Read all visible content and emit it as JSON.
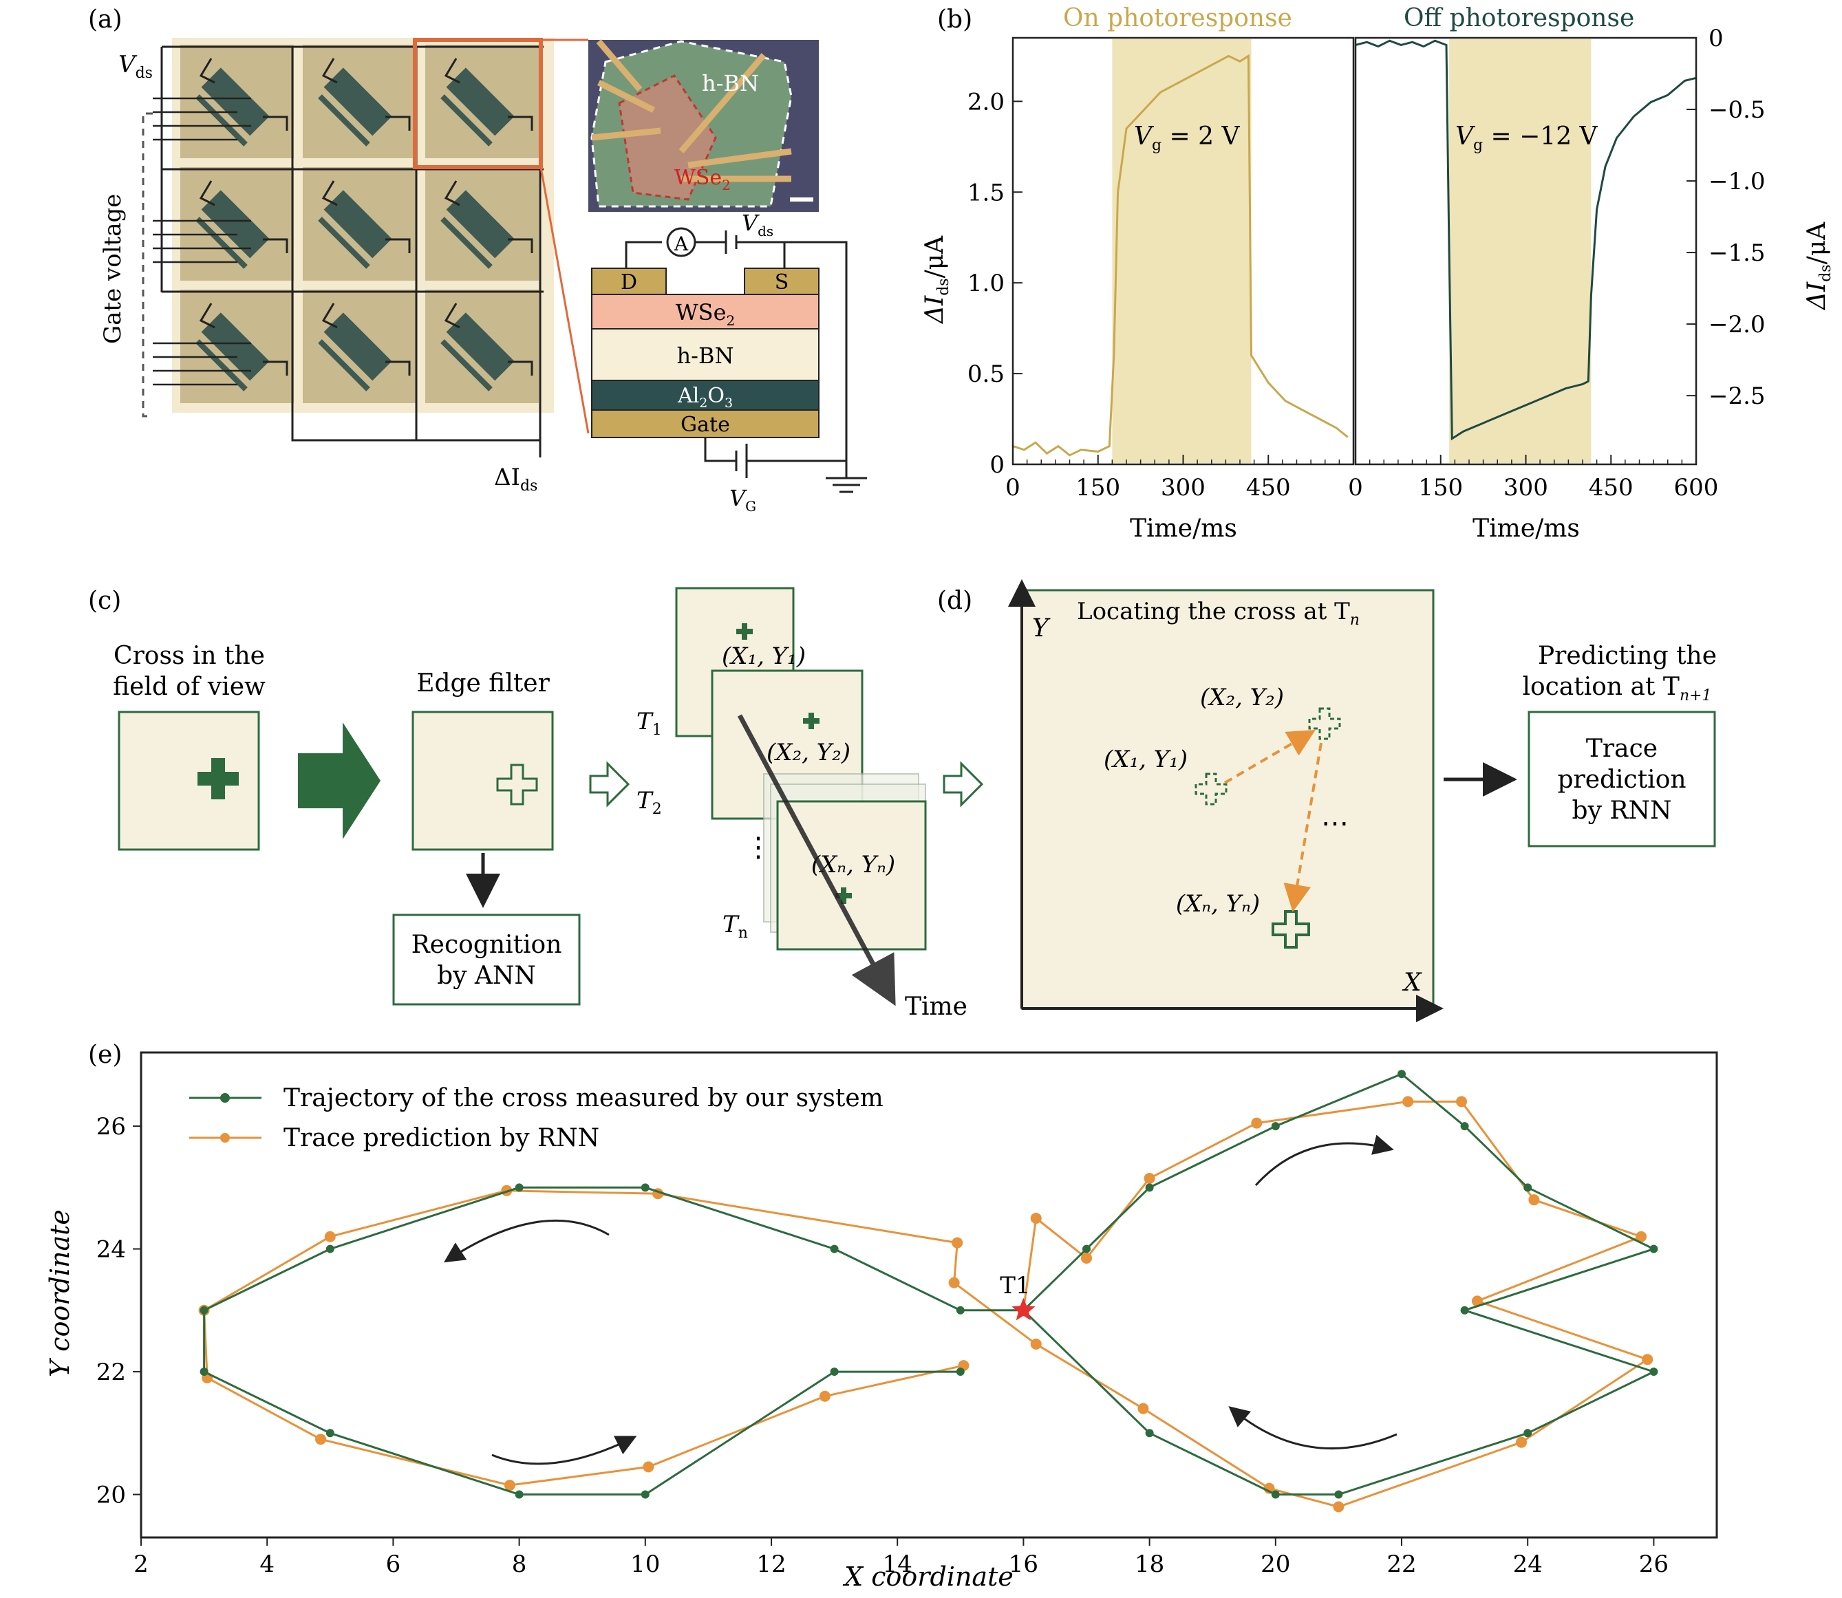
{
  "panels": {
    "a": {
      "letter": "(a)",
      "vds": "V",
      "vds_sub": "ds",
      "gate_voltage": "Gate voltage",
      "delta_ids": "ΔI",
      "delta_ids_sub": "ds",
      "micro_hbn": "h-BN",
      "micro_wse2": "WSe",
      "micro_wse2_sub": "2",
      "circuit": {
        "ammeter": "A",
        "vds": "V",
        "vds_sub": "ds",
        "drain": "D",
        "source": "S",
        "layer_wse2": "WSe",
        "layer_wse2_sub": "2",
        "layer_hbn": "h-BN",
        "layer_al2o3": "Al",
        "layer_al2o3_sub1": "2",
        "layer_al2o3_mid": "O",
        "layer_al2o3_sub2": "3",
        "layer_gate": "Gate",
        "vg": "V",
        "vg_sub": "G"
      },
      "colors": {
        "cell": "#c9b98e",
        "device": "#3f5a52",
        "frame": "#e06a3a",
        "wse2": "#f5b8a0",
        "hbn": "#f7efd8",
        "al2o3": "#2e4f4f",
        "gate": "#c8a85a"
      }
    },
    "b": {
      "letter": "(b)",
      "on_title": "On photoresponse",
      "off_title": "Off photoresponse",
      "ylabel_left": "ΔI",
      "ylabel_left_sub": "ds",
      "ylabel_left_unit": "/μA",
      "ylabel_right": "ΔI",
      "ylabel_right_sub": "ds",
      "ylabel_right_unit": "/μA",
      "xlabel": "Time/ms",
      "on_annot": "V",
      "on_annot_sub": "g",
      "on_annot_rest": " = 2 V",
      "off_annot": "V",
      "off_annot_sub": "g",
      "off_annot_rest": " = −12 V",
      "left_yticks": [
        "0",
        "0.5",
        "1.0",
        "1.5",
        "2.0"
      ],
      "right_yticks": [
        "0",
        "−0.5",
        "−1.0",
        "−1.5",
        "−2.0",
        "−2.5"
      ],
      "left_xticks": [
        "0",
        "150",
        "300",
        "450"
      ],
      "right_xticks": [
        "0",
        "150",
        "300",
        "450",
        "600"
      ],
      "colors": {
        "on": "#c9a84c",
        "off": "#1e4a40",
        "shade": "#efe3b8"
      }
    },
    "c": {
      "letter": "(c)",
      "cross_label_1": "Cross in the",
      "cross_label_2": "field of view",
      "edge_filter": "Edge filter",
      "recognition_1": "Recognition",
      "recognition_2": "by ANN",
      "t1": "T",
      "t1_sub": "1",
      "t2": "T",
      "t2_sub": "2",
      "tn": "T",
      "tn_sub": "n",
      "p1": "(X₁, Y₁)",
      "p2": "(X₂, Y₂)",
      "pn": "(Xₙ, Yₙ)",
      "dots": "⋮",
      "time": "Time"
    },
    "d": {
      "letter": "(d)",
      "title": "Locating the cross at T",
      "title_sub": "n",
      "y_axis": "Y",
      "x_axis": "X",
      "p1": "(X₁, Y₁)",
      "p2": "(X₂, Y₂)",
      "pn": "(Xₙ, Yₙ)",
      "dots": "⋯",
      "predict_1": "Predicting the",
      "predict_2": "location at T",
      "predict_sub": "n+1",
      "rnn_1": "Trace",
      "rnn_2": "prediction",
      "rnn_3": "by RNN"
    },
    "e": {
      "letter": "(e)"
    }
  },
  "chart_data": [
    {
      "type": "line",
      "panel": "b-left",
      "title": "On photoresponse",
      "xlabel": "Time/ms",
      "ylabel": "ΔIds/μA",
      "xlim": [
        0,
        600
      ],
      "ylim": [
        0,
        2.35
      ],
      "shaded_interval": [
        175,
        420
      ],
      "series": [
        {
          "x": [
            0,
            20,
            40,
            60,
            80,
            100,
            120,
            150,
            170,
            178,
            185,
            200,
            230,
            260,
            290,
            320,
            350,
            380,
            400,
            415,
            420,
            430,
            450,
            480,
            510,
            540,
            570,
            590
          ],
          "y": [
            0.1,
            0.08,
            0.12,
            0.06,
            0.1,
            0.05,
            0.08,
            0.07,
            0.1,
            0.6,
            1.5,
            1.85,
            1.95,
            2.05,
            2.1,
            2.15,
            2.2,
            2.25,
            2.22,
            2.25,
            0.6,
            0.55,
            0.45,
            0.35,
            0.3,
            0.25,
            0.2,
            0.15
          ]
        }
      ]
    },
    {
      "type": "line",
      "panel": "b-right",
      "title": "Off photoresponse",
      "xlabel": "Time/ms",
      "ylabel": "ΔIds/μA",
      "xlim": [
        0,
        600
      ],
      "ylim": [
        -2.98,
        0
      ],
      "shaded_interval": [
        165,
        415
      ],
      "series": [
        {
          "x": [
            0,
            20,
            40,
            60,
            80,
            100,
            120,
            140,
            160,
            165,
            170,
            190,
            220,
            250,
            280,
            310,
            340,
            370,
            400,
            410,
            415,
            425,
            440,
            460,
            490,
            520,
            550,
            580,
            600
          ],
          "y": [
            -0.05,
            -0.03,
            -0.06,
            -0.02,
            -0.05,
            -0.03,
            -0.06,
            -0.02,
            -0.05,
            -1.5,
            -2.8,
            -2.75,
            -2.7,
            -2.65,
            -2.6,
            -2.55,
            -2.5,
            -2.45,
            -2.42,
            -2.4,
            -1.8,
            -1.2,
            -0.9,
            -0.7,
            -0.55,
            -0.45,
            -0.4,
            -0.3,
            -0.28
          ]
        }
      ]
    },
    {
      "type": "line",
      "panel": "e",
      "xlabel": "X coordinate",
      "ylabel": "Y coordinate",
      "xlim": [
        2,
        27
      ],
      "ylim": [
        19.3,
        27.2
      ],
      "xticks": [
        2,
        4,
        6,
        8,
        10,
        12,
        14,
        16,
        18,
        20,
        22,
        24,
        26
      ],
      "yticks": [
        20,
        22,
        24,
        26
      ],
      "annotation": "T1",
      "annotation_point": [
        16,
        23
      ],
      "series": [
        {
          "name": "Trajectory of the cross measured by our system",
          "color": "#2d6b3f",
          "x": [
            16,
            17,
            18,
            20,
            22,
            23,
            24,
            26,
            23,
            26,
            24,
            21,
            20,
            18,
            16,
            15,
            13,
            10,
            8,
            5,
            3,
            3,
            5,
            8,
            10,
            13,
            15
          ],
          "y": [
            23,
            24,
            25,
            26,
            26.85,
            26,
            25,
            24,
            23,
            22,
            21,
            20,
            20,
            21,
            23,
            23,
            24,
            25,
            25,
            24,
            23,
            22,
            21,
            20,
            20,
            22,
            22
          ]
        },
        {
          "name": "Trace prediction by RNN",
          "color": "#e8923a",
          "x": [
            16,
            16.2,
            17,
            18,
            19.7,
            22.1,
            22.95,
            24.1,
            25.8,
            23.2,
            25.9,
            23.9,
            21,
            19.9,
            17.9,
            16.2,
            14.9,
            14.95,
            10.2,
            7.8,
            5,
            3,
            3.05,
            4.85,
            7.85,
            10.05,
            12.85,
            15.05
          ],
          "y": [
            23,
            24.5,
            23.85,
            25.15,
            26.05,
            26.4,
            26.4,
            24.8,
            24.2,
            23.15,
            22.2,
            20.85,
            19.8,
            20.1,
            21.4,
            22.45,
            23.45,
            24.1,
            24.9,
            24.95,
            24.2,
            23,
            21.9,
            20.9,
            20.15,
            20.45,
            21.6,
            22.1
          ]
        }
      ]
    }
  ]
}
